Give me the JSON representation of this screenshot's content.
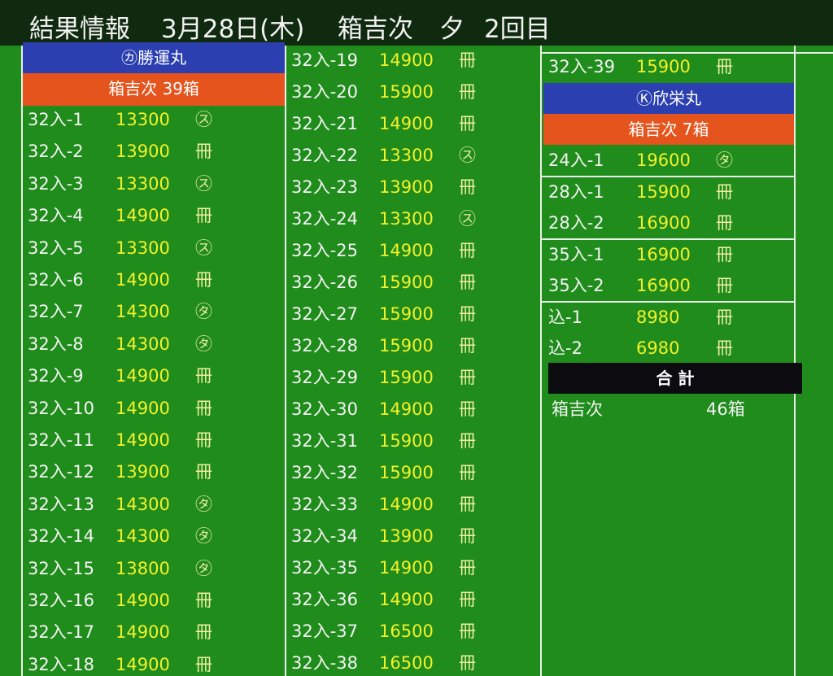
{
  "header": {
    "title": "結果情報",
    "date": "3月28日(木)",
    "boat": "箱吉次",
    "session": "夕",
    "round": "2回目"
  },
  "sections": [
    {
      "vessel": "㋕勝運丸",
      "summary": "箱吉次 39箱",
      "rows": [
        {
          "lot": "32入-1",
          "price": 13300,
          "mark": "㋜"
        },
        {
          "lot": "32入-2",
          "price": 13900,
          "mark": "冊"
        },
        {
          "lot": "32入-3",
          "price": 13300,
          "mark": "㋜"
        },
        {
          "lot": "32入-4",
          "price": 14900,
          "mark": "冊"
        },
        {
          "lot": "32入-5",
          "price": 13300,
          "mark": "㋜"
        },
        {
          "lot": "32入-6",
          "price": 14900,
          "mark": "冊"
        },
        {
          "lot": "32入-7",
          "price": 14300,
          "mark": "㋟"
        },
        {
          "lot": "32入-8",
          "price": 14300,
          "mark": "㋟"
        },
        {
          "lot": "32入-9",
          "price": 14900,
          "mark": "冊"
        },
        {
          "lot": "32入-10",
          "price": 14900,
          "mark": "冊"
        },
        {
          "lot": "32入-11",
          "price": 14900,
          "mark": "冊"
        },
        {
          "lot": "32入-12",
          "price": 13900,
          "mark": "冊"
        },
        {
          "lot": "32入-13",
          "price": 14300,
          "mark": "㋟"
        },
        {
          "lot": "32入-14",
          "price": 14300,
          "mark": "㋟"
        },
        {
          "lot": "32入-15",
          "price": 13800,
          "mark": "㋟"
        },
        {
          "lot": "32入-16",
          "price": 14900,
          "mark": "冊"
        },
        {
          "lot": "32入-17",
          "price": 14900,
          "mark": "冊"
        },
        {
          "lot": "32入-18",
          "price": 14900,
          "mark": "冊"
        },
        {
          "lot": "32入-19",
          "price": 14900,
          "mark": "冊"
        },
        {
          "lot": "32入-20",
          "price": 15900,
          "mark": "冊"
        },
        {
          "lot": "32入-21",
          "price": 14900,
          "mark": "冊"
        },
        {
          "lot": "32入-22",
          "price": 13300,
          "mark": "㋜"
        },
        {
          "lot": "32入-23",
          "price": 13900,
          "mark": "冊"
        },
        {
          "lot": "32入-24",
          "price": 13300,
          "mark": "㋜"
        },
        {
          "lot": "32入-25",
          "price": 14900,
          "mark": "冊"
        },
        {
          "lot": "32入-26",
          "price": 15900,
          "mark": "冊"
        },
        {
          "lot": "32入-27",
          "price": 15900,
          "mark": "冊"
        },
        {
          "lot": "32入-28",
          "price": 15900,
          "mark": "冊"
        },
        {
          "lot": "32入-29",
          "price": 15900,
          "mark": "冊"
        },
        {
          "lot": "32入-30",
          "price": 14900,
          "mark": "冊"
        },
        {
          "lot": "32入-31",
          "price": 15900,
          "mark": "冊"
        },
        {
          "lot": "32入-32",
          "price": 15900,
          "mark": "冊"
        },
        {
          "lot": "32入-33",
          "price": 14900,
          "mark": "冊"
        },
        {
          "lot": "32入-34",
          "price": 13900,
          "mark": "冊"
        },
        {
          "lot": "32入-35",
          "price": 14900,
          "mark": "冊"
        },
        {
          "lot": "32入-36",
          "price": 14900,
          "mark": "冊"
        },
        {
          "lot": "32入-37",
          "price": 16500,
          "mark": "冊"
        },
        {
          "lot": "32入-38",
          "price": 16500,
          "mark": "冊"
        },
        {
          "lot": "32入-39",
          "price": 15900,
          "mark": "冊"
        }
      ]
    },
    {
      "vessel": "Ⓚ欣栄丸",
      "summary": "箱吉次 7箱",
      "groups": [
        [
          {
            "lot": "24入-1",
            "price": 19600,
            "mark": "㋟"
          }
        ],
        [
          {
            "lot": "28入-1",
            "price": 15900,
            "mark": "冊"
          },
          {
            "lot": "28入-2",
            "price": 16900,
            "mark": "冊"
          }
        ],
        [
          {
            "lot": "35入-1",
            "price": 16900,
            "mark": "冊"
          },
          {
            "lot": "35入-2",
            "price": 16900,
            "mark": "冊"
          }
        ],
        [
          {
            "lot": "込-1",
            "price": 8980,
            "mark": "冊"
          },
          {
            "lot": "込-2",
            "price": 6980,
            "mark": "冊"
          }
        ]
      ]
    }
  ],
  "total": {
    "title": "合 計",
    "label": "箱吉次",
    "value": "46箱"
  }
}
